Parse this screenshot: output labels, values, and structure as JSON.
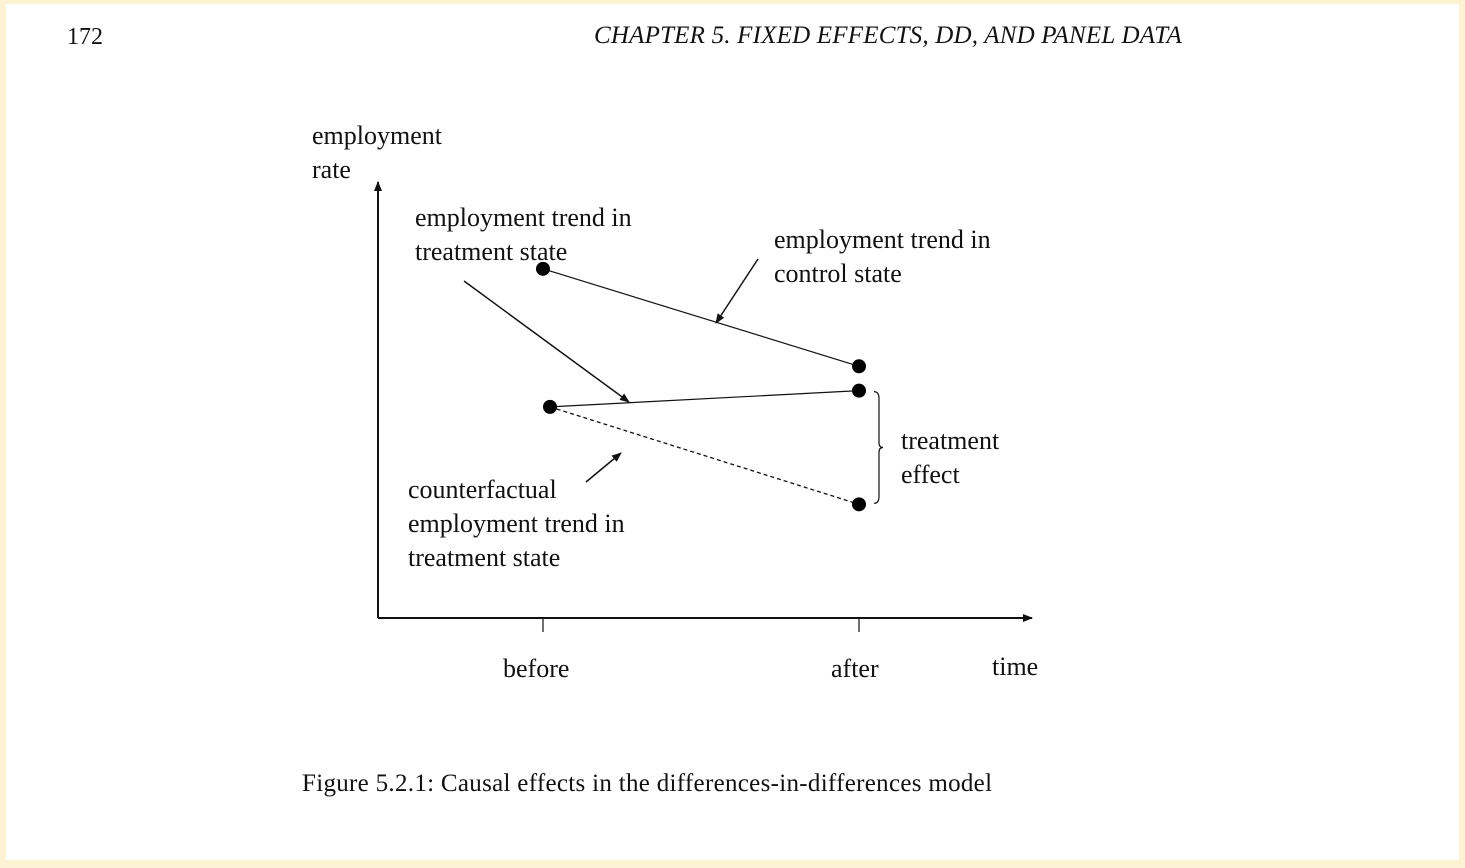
{
  "header": {
    "page_number": "172",
    "running_head": "CHAPTER 5.   FIXED EFFECTS, DD, AND PANEL DATA"
  },
  "figure": {
    "y_axis_label": [
      "employment",
      "rate"
    ],
    "x_axis_label": "time",
    "tick_labels": [
      "before",
      "after"
    ],
    "annotations": {
      "treatment_trend": [
        "employment trend in",
        "treatment state"
      ],
      "control_trend": [
        "employment trend in",
        "control state"
      ],
      "counterfactual_trend": [
        "counterfactual",
        "employment trend in",
        "treatment state"
      ],
      "treatment_effect": [
        "treatment",
        "effect"
      ]
    },
    "caption": "Figure 5.2.1: Causal effects in the differences-in-differences model"
  },
  "chart_data": {
    "type": "line",
    "categories": [
      "before",
      "after"
    ],
    "xlabel": "time",
    "ylabel": "employment rate",
    "series": [
      {
        "name": "employment trend in control state",
        "values": [
          0.86,
          0.62
        ],
        "style": "solid"
      },
      {
        "name": "employment trend in treatment state",
        "values": [
          0.52,
          0.56
        ],
        "style": "solid"
      },
      {
        "name": "counterfactual employment trend in treatment state",
        "values": [
          0.52,
          0.28
        ],
        "style": "dashed"
      }
    ],
    "bracket": {
      "label": "treatment effect",
      "category": "after",
      "from": 0.28,
      "to": 0.56
    },
    "ylim": [
      0,
      1
    ],
    "grid": false,
    "legend": "none"
  }
}
